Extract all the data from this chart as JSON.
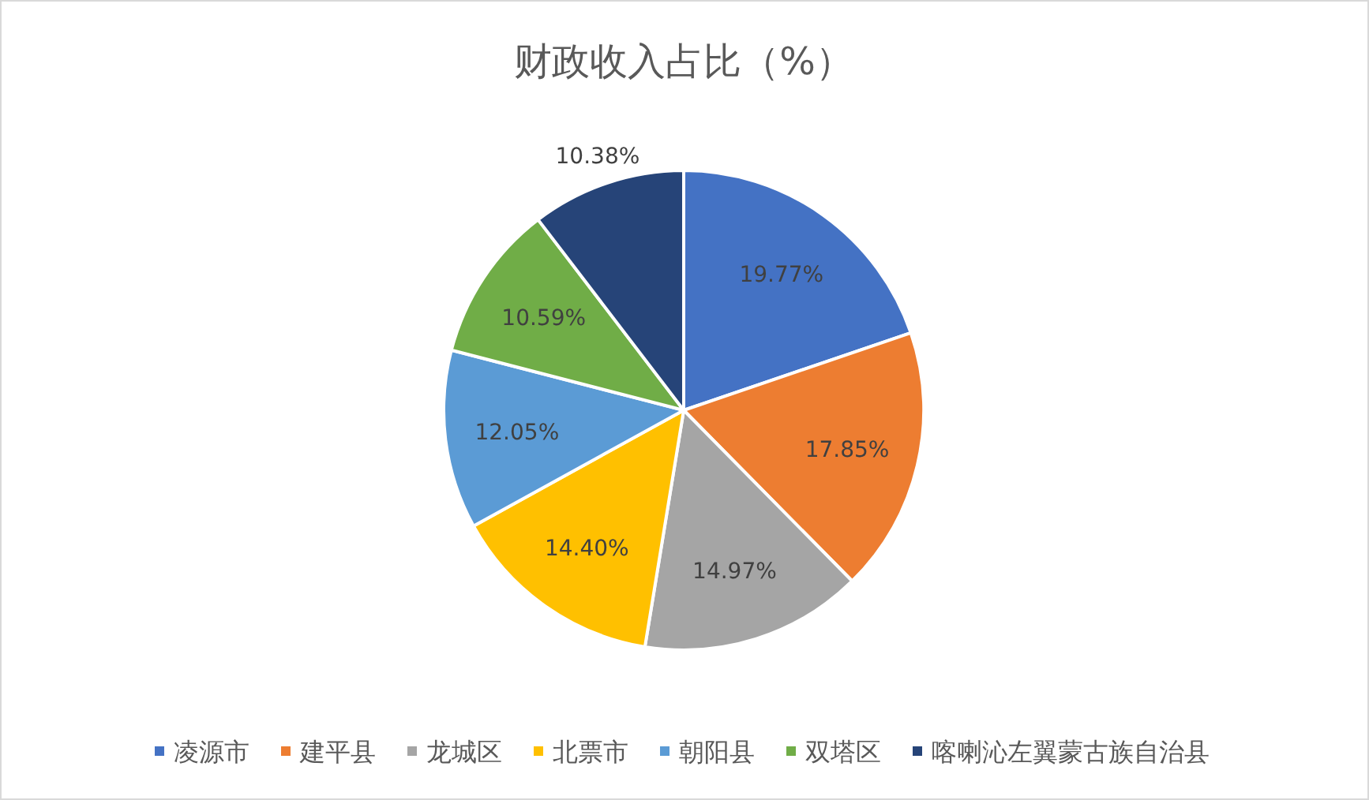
{
  "chart_data": {
    "type": "pie",
    "title": "财政收入占比（%）",
    "categories": [
      "凌源市",
      "建平县",
      "龙城区",
      "北票市",
      "朝阳县",
      "双塔区",
      "喀喇沁左翼蒙古族自治县"
    ],
    "values": [
      19.77,
      17.85,
      14.97,
      14.4,
      12.05,
      10.59,
      10.38
    ],
    "value_labels": [
      "19.77%",
      "17.85%",
      "14.97%",
      "14.40%",
      "12.05%",
      "10.59%",
      "10.38%"
    ],
    "colors": [
      "#4472c4",
      "#ed7d31",
      "#a5a5a5",
      "#ffc000",
      "#5b9bd5",
      "#70ad47",
      "#264478"
    ],
    "legend": "bottom"
  }
}
